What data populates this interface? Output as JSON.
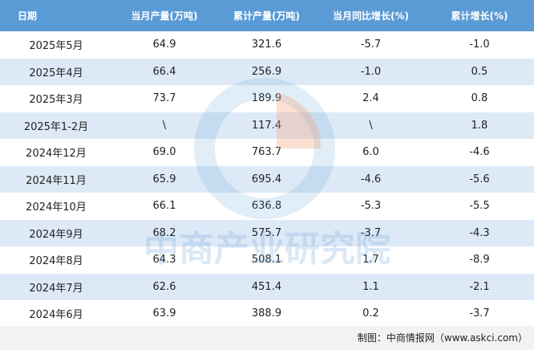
{
  "table": {
    "header": [
      "日期",
      "当月产量(万吨)",
      "累计产量(万吨)",
      "当月同比增长(%)",
      "累计增长(%)"
    ],
    "rows": [
      [
        "2025年5月",
        "64.9",
        "321.6",
        "-5.7",
        "-1.0"
      ],
      [
        "2025年4月",
        "66.4",
        "256.9",
        "-1.0",
        "0.5"
      ],
      [
        "2025年3月",
        "73.7",
        "189.9",
        "2.4",
        "0.8"
      ],
      [
        "2025年1-2月",
        "\\",
        "117.4",
        "\\",
        "1.8"
      ],
      [
        "2024年12月",
        "69.0",
        "763.7",
        "6.0",
        "-4.6"
      ],
      [
        "2024年11月",
        "65.9",
        "695.4",
        "-4.6",
        "-5.6"
      ],
      [
        "2024年10月",
        "66.1",
        "636.8",
        "-5.3",
        "-5.5"
      ],
      [
        "2024年9月",
        "68.2",
        "575.7",
        "-3.7",
        "-4.3"
      ],
      [
        "2024年8月",
        "64.3",
        "508.1",
        "1.7",
        "-8.9"
      ],
      [
        "2024年7月",
        "62.6",
        "451.4",
        "1.1",
        "-2.1"
      ],
      [
        "2024年6月",
        "63.9",
        "388.9",
        "0.2",
        "-3.7"
      ]
    ]
  },
  "watermark": "中商产业研究院",
  "footer": "制图：中商情报网（www.askci.com）"
}
